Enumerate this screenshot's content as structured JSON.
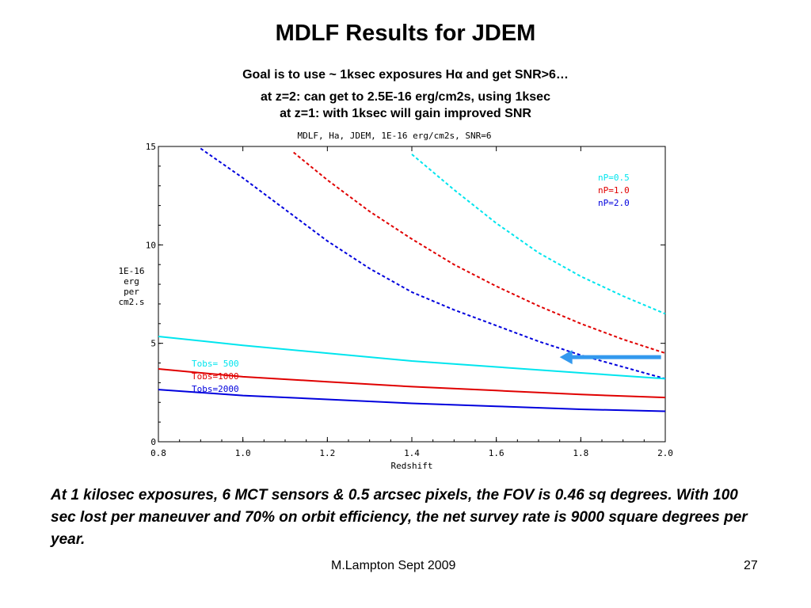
{
  "slide": {
    "title": "MDLF Results for JDEM",
    "subtitle_lines": [
      "Goal is to use ~ 1ksec exposures Hα and get SNR>6…",
      "at z=2:  can get to 2.5E-16 erg/cm2s, using 1ksec",
      "at z=1: with 1ksec will gain improved SNR"
    ],
    "body_text": "At 1 kilosec exposures, 6 MCT sensors & 0.5 arcsec pixels, the FOV is 0.46 sq degrees.  With 100 sec lost per maneuver and 70% on orbit efficiency, the net survey rate is 9000 square degrees per year.",
    "footer_author": "M.Lampton Sept 2009",
    "page_number": "27"
  },
  "chart_data": {
    "type": "line",
    "title": "MDLF, Ha, JDEM, 1E-16 erg/cm2s, SNR=6",
    "xlabel": "Redshift",
    "ylabel_lines": [
      "1E-16",
      "erg",
      "per",
      "cm2.s"
    ],
    "xlim": [
      0.8,
      2.0
    ],
    "ylim": [
      0,
      15
    ],
    "x_ticks": [
      0.8,
      1.0,
      1.2,
      1.4,
      1.6,
      1.8,
      2.0
    ],
    "x_tick_labels": [
      "0.8",
      "1.0",
      "1.2",
      "1.4",
      "1.6",
      "1.8",
      "2.0"
    ],
    "y_ticks": [
      0,
      5,
      10,
      15
    ],
    "y_tick_labels": [
      "0",
      "5",
      "10",
      "15"
    ],
    "grid": false,
    "legend_top_right": [
      "nP=0.5",
      "nP=1.0",
      "nP=2.0"
    ],
    "legend_left": [
      "Tobs= 500",
      "Tobs=1000",
      "Tobs=2000"
    ],
    "colors": {
      "cyan": "#00e5ee",
      "red": "#e00000",
      "blue": "#0000dd",
      "arrow": "#3399ee"
    },
    "series": [
      {
        "name": "nP=0.5",
        "color": "#00e5ee",
        "style": "dashed",
        "x": [
          1.4,
          1.5,
          1.6,
          1.7,
          1.8,
          1.9,
          2.0
        ],
        "y": [
          14.6,
          12.8,
          11.1,
          9.6,
          8.4,
          7.4,
          6.5
        ]
      },
      {
        "name": "nP=1.0",
        "color": "#e00000",
        "style": "dashed",
        "x": [
          1.12,
          1.2,
          1.3,
          1.4,
          1.5,
          1.6,
          1.7,
          1.8,
          1.9,
          2.0
        ],
        "y": [
          14.7,
          13.3,
          11.7,
          10.3,
          9.0,
          7.9,
          6.9,
          6.0,
          5.2,
          4.5
        ]
      },
      {
        "name": "nP=2.0",
        "color": "#0000dd",
        "style": "dashed",
        "x": [
          0.9,
          1.0,
          1.1,
          1.2,
          1.3,
          1.4,
          1.5,
          1.6,
          1.7,
          1.8,
          1.9,
          2.0
        ],
        "y": [
          14.9,
          13.4,
          11.8,
          10.2,
          8.8,
          7.6,
          6.7,
          5.9,
          5.1,
          4.4,
          3.8,
          3.2
        ]
      },
      {
        "name": "Tobs= 500",
        "color": "#00e5ee",
        "style": "solid",
        "x": [
          0.8,
          1.0,
          1.2,
          1.4,
          1.6,
          1.8,
          2.0
        ],
        "y": [
          5.35,
          4.9,
          4.5,
          4.1,
          3.8,
          3.5,
          3.2
        ]
      },
      {
        "name": "Tobs=1000",
        "color": "#e00000",
        "style": "solid",
        "x": [
          0.8,
          1.0,
          1.2,
          1.4,
          1.6,
          1.8,
          2.0
        ],
        "y": [
          3.7,
          3.3,
          3.05,
          2.8,
          2.6,
          2.4,
          2.25
        ]
      },
      {
        "name": "Tobs=2000",
        "color": "#0000dd",
        "style": "solid",
        "x": [
          0.8,
          1.0,
          1.2,
          1.4,
          1.6,
          1.8,
          2.0
        ],
        "y": [
          2.65,
          2.35,
          2.15,
          1.95,
          1.8,
          1.65,
          1.55
        ]
      }
    ],
    "annotation_arrow": {
      "from": {
        "x": 1.99,
        "y": 4.3
      },
      "to": {
        "x": 1.75,
        "y": 4.3
      }
    }
  }
}
